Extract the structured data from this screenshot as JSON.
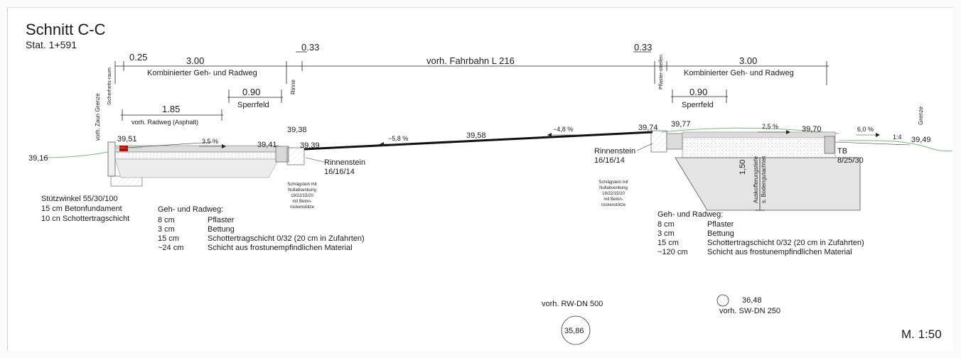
{
  "title": "Schnitt C-C",
  "station": "Stat. 1+591",
  "scale": "M. 1:50",
  "top_dims": {
    "d025": "0.25",
    "d300_left": "3.00",
    "d033_left": "0.33",
    "fahrbahn": "vorh. Fahrbahn L 216",
    "d033_right": "0.33",
    "d300_right": "3.00",
    "kgr_left": "Kombinierter Geh- und Radweg",
    "kgr_right": "Kombinierter Geh- und Radweg",
    "rinne": "Rinne",
    "sicherheitsraum": "Sicherheits-raum",
    "pflasterstreifen": "Pflaster-streifen",
    "d090_left": "0.90",
    "sperrfeld_left": "Sperrfeld",
    "d090_right": "0.90",
    "sperrfeld_right": "Sperrfeld",
    "d185": "1.85",
    "radweg_asphalt": "vorh. Radweg (Asphalt)",
    "zaun_grenze": "vorh. Zaun Grenze",
    "grenze": "Grenze"
  },
  "elevations": {
    "e3916": "39,16",
    "e3951": "39,51",
    "e3941": "39,41",
    "e3938": "39,38",
    "e3939": "39,39",
    "e3958": "39,58",
    "e3974": "39,74",
    "e3977": "39,77",
    "e3970": "39,70",
    "e3949": "39,49",
    "e3648": "36,48",
    "e3586": "35,86"
  },
  "slopes": {
    "s35": "3,5 %",
    "s58": "−5,8 %",
    "s48": "−4,8 %",
    "s25": "2,5 %",
    "s60": "6,0 %",
    "s14": "1:4"
  },
  "labels": {
    "rinnenstein_left": "Rinnenstein",
    "rinnenstein_left_dim": "16/16/14",
    "rinnenstein_right": "Rinnenstein",
    "rinnenstein_right_dim": "16/16/14",
    "tb": "TB",
    "tb_dim": "8/25/30",
    "auskofferung": "Auskofferungstiefe",
    "bodengutachten": "s. Bodengutachten",
    "d150": "1,50",
    "rw": "vorh. RW-DN 500",
    "sw": "vorh. SW-DN 250"
  },
  "schraegstein": [
    "Schrägstein mit",
    "Nullabsenkung",
    "19/22/15/20",
    "mit Beton-",
    "rückenstütze"
  ],
  "stuetzwinkel": [
    "Stützwinkel 55/30/100",
    "15 cm Betonfundament",
    "10 cn Schottertragschicht"
  ],
  "layers_left": {
    "heading": "Geh- und Radweg:",
    "rows": [
      [
        "8 cm",
        "Pflaster"
      ],
      [
        "3 cm",
        "Bettung"
      ],
      [
        "15 cm",
        "Schottertragschicht 0/32 (20 cm in Zufahrten)"
      ],
      [
        "~24 cm",
        "Schicht aus frostunempfindlichen Material"
      ]
    ]
  },
  "layers_right": {
    "heading": "Geh- und Radweg:",
    "rows": [
      [
        "8 cm",
        "Pflaster"
      ],
      [
        "3 cm",
        "Bettung"
      ],
      [
        "15 cm",
        "Schottertragschicht 0/32 (20 cm in Zufahrten)"
      ],
      [
        "~120 cm",
        "Schicht aus frostunempfindlichen Material"
      ]
    ]
  },
  "colors": {
    "ground": "#7cb87c",
    "road": "#111111",
    "fill": "#e6e6e6",
    "accent": "#cc0000"
  }
}
